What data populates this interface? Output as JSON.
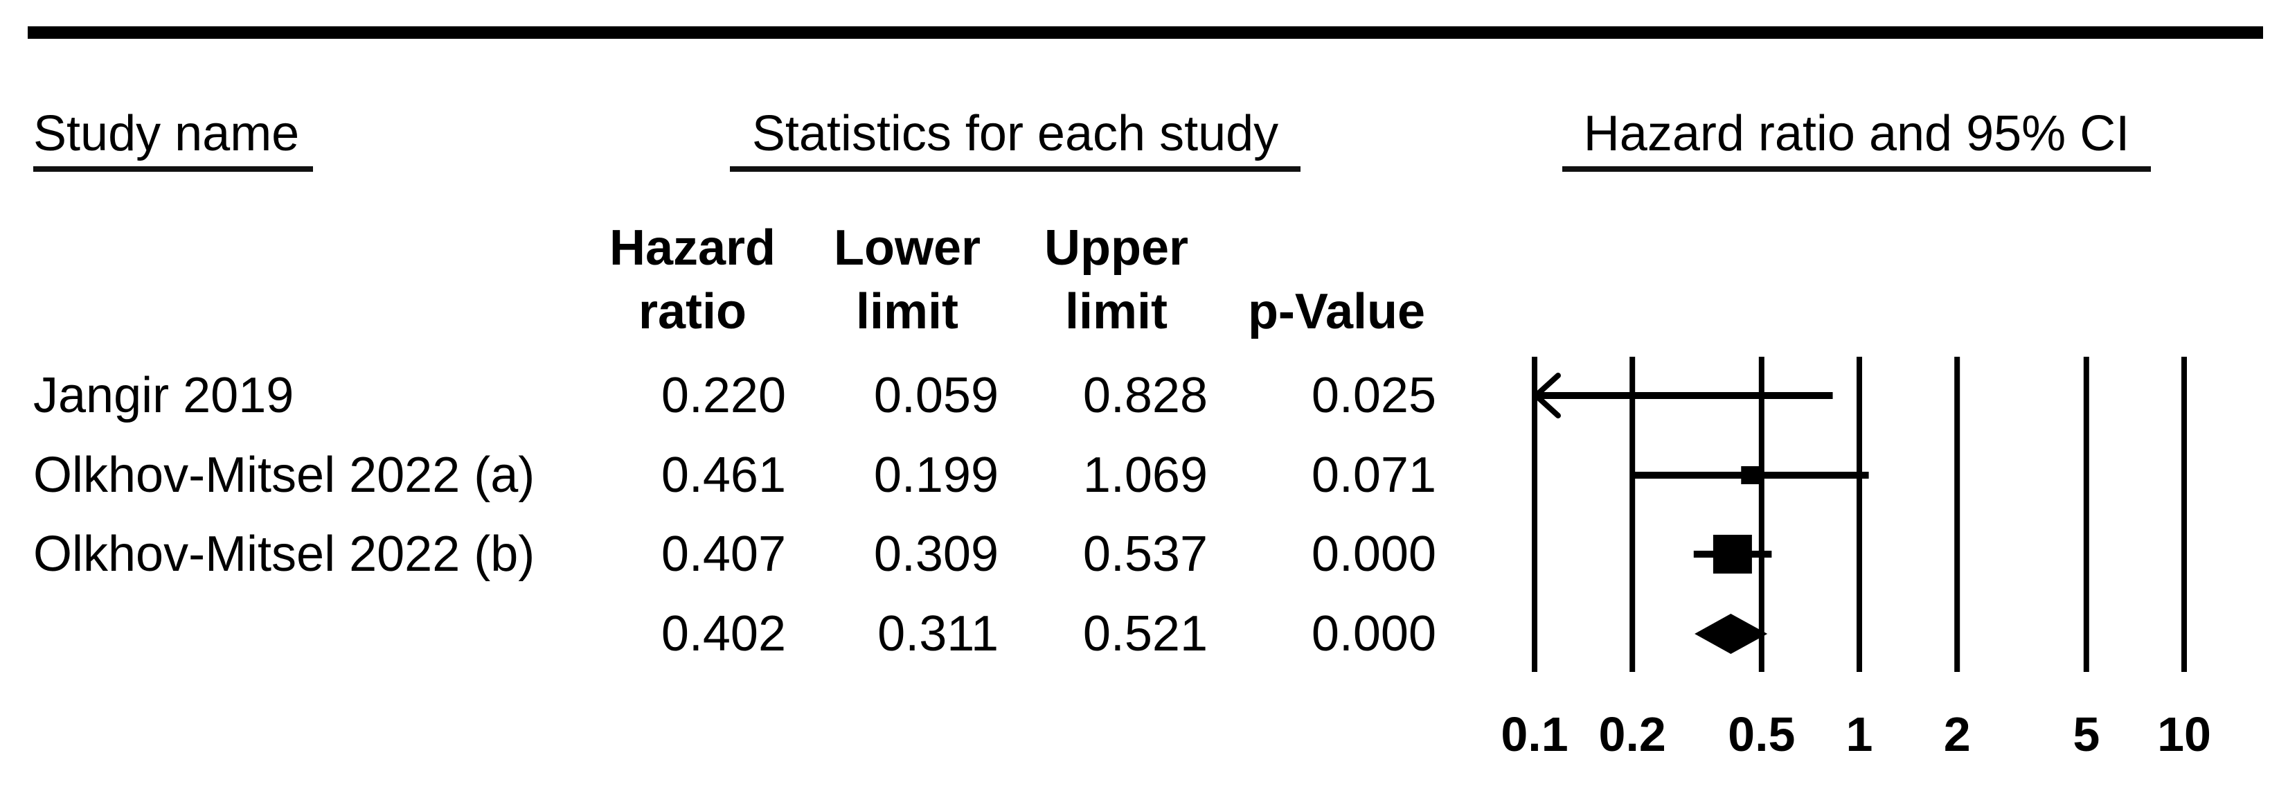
{
  "figure": {
    "section_headers": {
      "study": "Study name",
      "statistics": "Statistics for each study",
      "plot": "Hazard ratio and 95% CI"
    },
    "stat_column_headers": [
      {
        "line1": "Hazard",
        "line2": "ratio"
      },
      {
        "line1": "Lower",
        "line2": "limit"
      },
      {
        "line1": "Upper",
        "line2": "limit"
      },
      {
        "line1": "",
        "line2": "p-Value"
      }
    ]
  },
  "chart_data": {
    "type": "forest",
    "title": "Hazard ratio and 95% CI",
    "x_scale": "log",
    "x_range": [
      0.1,
      10
    ],
    "x_ticks": [
      0.1,
      0.2,
      0.5,
      1,
      2,
      5,
      10
    ],
    "x_tick_labels": [
      "0.1",
      "0.2",
      "0.5",
      "1",
      "2",
      "5",
      "10"
    ],
    "grid": true,
    "studies": [
      {
        "name": "Jangir 2019",
        "hazard_ratio": 0.22,
        "lower_limit": 0.059,
        "upper_limit": 0.828,
        "p_value": 0.025,
        "marker": "square",
        "marker_size_px": 0
      },
      {
        "name": "Olkhov-Mitsel 2022 (a)",
        "hazard_ratio": 0.461,
        "lower_limit": 0.199,
        "upper_limit": 1.069,
        "p_value": 0.071,
        "marker": "square",
        "marker_size_px": 26
      },
      {
        "name": "Olkhov-Mitsel 2022 (b)",
        "hazard_ratio": 0.407,
        "lower_limit": 0.309,
        "upper_limit": 0.537,
        "p_value": 0.0,
        "marker": "square",
        "marker_size_px": 56
      },
      {
        "name": "",
        "hazard_ratio": 0.402,
        "lower_limit": 0.311,
        "upper_limit": 0.521,
        "p_value": 0.0,
        "marker": "diamond"
      }
    ]
  }
}
